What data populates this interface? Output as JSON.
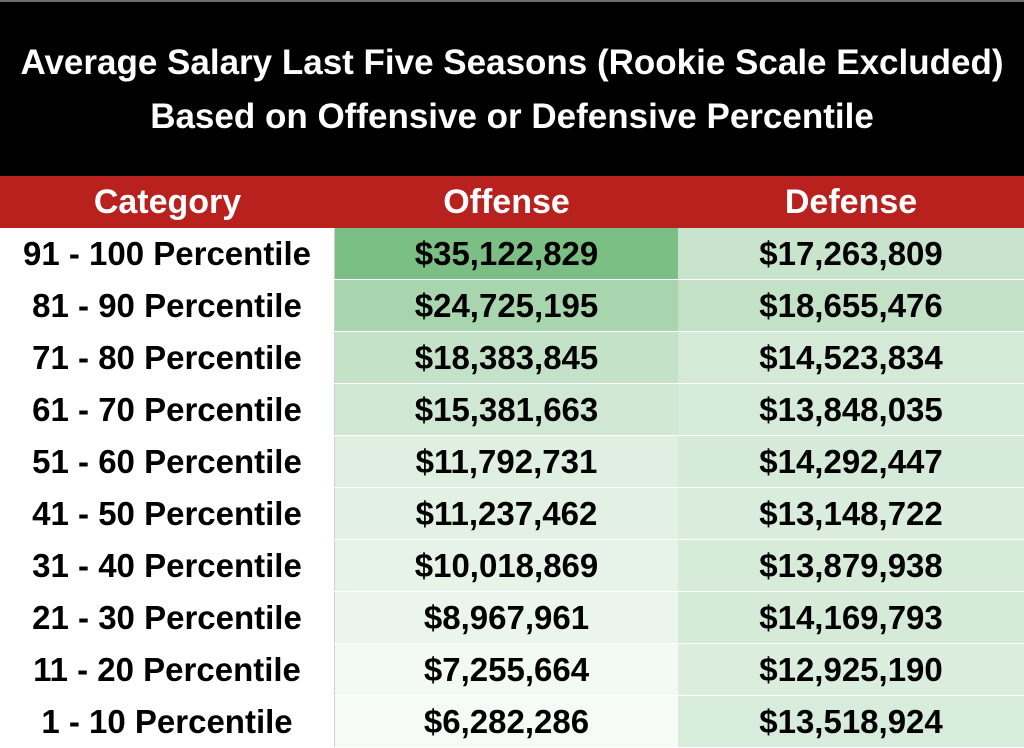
{
  "chart_data": {
    "type": "table",
    "title": "Average Salary Last Five Seasons (Rookie Scale Excluded) Based on Offensive or Defensive Percentile",
    "columns": [
      "Category",
      "Offense",
      "Defense"
    ],
    "rows": [
      {
        "category": "91 - 100 Percentile",
        "offense": "$35,122,829",
        "defense": "$17,263,809",
        "offense_value": 35122829,
        "defense_value": 17263809
      },
      {
        "category": "81 - 90 Percentile",
        "offense": "$24,725,195",
        "defense": "$18,655,476",
        "offense_value": 24725195,
        "defense_value": 18655476
      },
      {
        "category": "71 - 80 Percentile",
        "offense": "$18,383,845",
        "defense": "$14,523,834",
        "offense_value": 18383845,
        "defense_value": 14523834
      },
      {
        "category": "61 - 70 Percentile",
        "offense": "$15,381,663",
        "defense": "$13,848,035",
        "offense_value": 15381663,
        "defense_value": 13848035
      },
      {
        "category": "51 - 60 Percentile",
        "offense": "$11,792,731",
        "defense": "$14,292,447",
        "offense_value": 11792731,
        "defense_value": 14292447
      },
      {
        "category": "41 - 50 Percentile",
        "offense": "$11,237,462",
        "defense": "$13,148,722",
        "offense_value": 11237462,
        "defense_value": 13148722
      },
      {
        "category": "31 - 40 Percentile",
        "offense": "$10,018,869",
        "defense": "$13,879,938",
        "offense_value": 10018869,
        "defense_value": 13879938
      },
      {
        "category": "21 - 30 Percentile",
        "offense": "$8,967,961",
        "defense": "$14,169,793",
        "offense_value": 8967961,
        "defense_value": 14169793
      },
      {
        "category": "11 - 20 Percentile",
        "offense": "$7,255,664",
        "defense": "$12,925,190",
        "offense_value": 7255664,
        "defense_value": 12925190
      },
      {
        "category": "1 - 10 Percentile",
        "offense": "$6,282,286",
        "defense": "$13,518,924",
        "offense_value": 6282286,
        "defense_value": 13518924
      }
    ]
  },
  "colors": {
    "title_background": "#000000",
    "header_background": "#b8211d",
    "scale_low": "#f7fbf8",
    "scale_high": "#7cbf84"
  }
}
